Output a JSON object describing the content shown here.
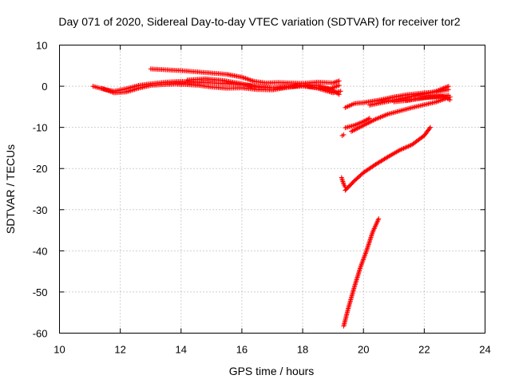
{
  "chart_data": {
    "type": "scatter",
    "title": "Day 071 of 2020, Sidereal Day-to-day VTEC variation (SDTVAR) for receiver tor2",
    "xlabel": "GPS time / hours",
    "ylabel": "SDTVAR / TECUs",
    "xlim": [
      10,
      24
    ],
    "ylim": [
      -60,
      10
    ],
    "xticks": [
      10,
      12,
      14,
      16,
      18,
      20,
      22,
      24
    ],
    "yticks": [
      -60,
      -50,
      -40,
      -30,
      -20,
      -10,
      0,
      10
    ],
    "grid": true,
    "marker": "+",
    "color": "#ff0000",
    "series": [
      {
        "x": [
          11.1,
          11.5,
          11.8,
          12.2,
          12.6,
          13.0,
          13.5,
          14.0,
          14.5,
          15.0,
          15.5,
          16.0,
          16.5,
          17.0,
          17.5,
          18.0,
          18.5,
          18.9,
          19.2
        ],
        "y": [
          0.0,
          -0.8,
          -1.2,
          -0.6,
          0.2,
          0.6,
          1.0,
          1.2,
          1.0,
          0.8,
          0.6,
          0.4,
          0.0,
          -0.4,
          -0.2,
          0.0,
          -0.4,
          -0.6,
          0.2
        ]
      },
      {
        "x": [
          11.4,
          11.8,
          12.2,
          12.6,
          13.0,
          13.4,
          13.8,
          14.2,
          14.6,
          15.0,
          15.5,
          16.0,
          16.5,
          17.0,
          17.5,
          18.0,
          18.5,
          19.0,
          19.25
        ],
        "y": [
          -0.5,
          -1.6,
          -1.4,
          -0.5,
          0.2,
          0.4,
          0.5,
          0.4,
          0.2,
          -0.2,
          -0.5,
          -0.4,
          -0.8,
          -0.9,
          -0.3,
          0.3,
          -0.5,
          -1.6,
          -1.2
        ]
      },
      {
        "x": [
          13.0,
          13.5,
          14.0,
          14.5,
          15.0,
          15.5,
          16.0,
          16.4,
          16.8,
          17.2,
          17.6,
          18.0,
          18.5,
          19.0,
          19.2
        ],
        "y": [
          4.2,
          4.0,
          3.8,
          3.5,
          3.2,
          2.9,
          2.2,
          1.2,
          0.8,
          0.9,
          0.8,
          0.7,
          1.0,
          0.8,
          1.3
        ]
      },
      {
        "x": [
          14.2,
          14.8,
          15.4,
          16.0,
          16.5,
          17.0,
          17.5,
          18.0,
          18.5,
          19.0,
          19.2
        ],
        "y": [
          1.5,
          1.8,
          1.4,
          0.6,
          -0.2,
          -0.4,
          -0.1,
          0.3,
          0.2,
          -1.0,
          -2.0
        ]
      },
      {
        "x": [
          19.4,
          19.7,
          20.0,
          20.5,
          21.0,
          21.5,
          22.0,
          22.4,
          22.8
        ],
        "y": [
          -5.2,
          -4.2,
          -4.0,
          -3.4,
          -2.6,
          -2.0,
          -1.6,
          -1.4,
          -0.8
        ]
      },
      {
        "x": [
          20.2,
          20.6,
          21.0,
          21.5,
          22.0,
          22.4,
          22.8
        ],
        "y": [
          -4.6,
          -4.0,
          -3.4,
          -2.6,
          -1.9,
          -1.2,
          0.0
        ]
      },
      {
        "x": [
          21.0,
          21.5,
          22.0,
          22.4,
          22.8
        ],
        "y": [
          -3.8,
          -3.4,
          -2.8,
          -2.6,
          -2.2
        ]
      },
      {
        "x": [
          21.4,
          21.8,
          22.2,
          22.6,
          22.85
        ],
        "y": [
          -3.5,
          -3.0,
          -2.6,
          -2.4,
          -3.3
        ]
      },
      {
        "x": [
          19.4,
          19.7,
          20.0,
          20.2
        ],
        "y": [
          -10.1,
          -9.5,
          -8.6,
          -7.8
        ]
      },
      {
        "x": [
          19.6,
          20.0,
          20.4,
          20.8,
          21.2,
          21.6,
          22.0,
          22.4,
          22.85
        ],
        "y": [
          -11.0,
          -9.5,
          -8.0,
          -6.8,
          -6.0,
          -5.2,
          -4.5,
          -3.8,
          -2.6
        ]
      },
      {
        "x": [
          19.3,
          19.35
        ],
        "y": [
          -12.0,
          -11.8
        ]
      },
      {
        "x": [
          19.4,
          19.7,
          20.0,
          20.4,
          20.8,
          21.2,
          21.6,
          22.0,
          22.2
        ],
        "y": [
          -25.3,
          -23.0,
          -21.0,
          -19.0,
          -17.2,
          -15.5,
          -14.2,
          -12.0,
          -10.0
        ]
      },
      {
        "x": [
          19.28,
          19.35,
          19.4
        ],
        "y": [
          -22.2,
          -23.8,
          -24.5
        ]
      },
      {
        "x": [
          19.35,
          19.5,
          19.7,
          19.9,
          20.1,
          20.3,
          20.5
        ],
        "y": [
          -58.3,
          -54.0,
          -48.8,
          -44.0,
          -40.0,
          -35.5,
          -32.2
        ]
      }
    ]
  }
}
